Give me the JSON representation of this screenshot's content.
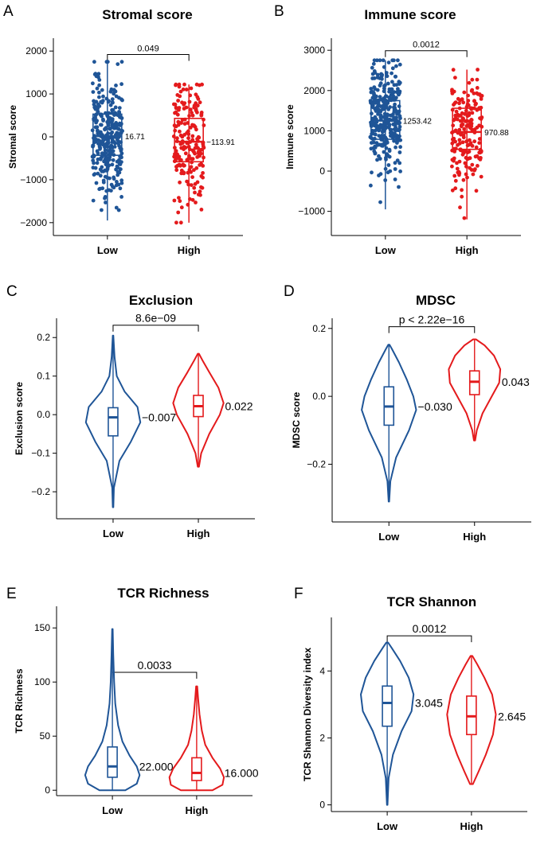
{
  "colors": {
    "low": "#1f5597",
    "high": "#e41a1c",
    "axis": "#000000"
  },
  "chart_data": [
    {
      "letter": "A",
      "type": "box",
      "title": "Stromal score",
      "ylabel": "Stromal score",
      "categories": [
        "Low",
        "High"
      ],
      "ylim": [
        -2300,
        2300
      ],
      "yticks": [
        -2000,
        -1000,
        0,
        1000,
        2000
      ],
      "tick_labels": [
        "−2000",
        "−1000",
        "0",
        "1000",
        "2000"
      ],
      "p_value": "0.049",
      "p_y": 1920,
      "groups": [
        {
          "name": "Low",
          "min": -1950,
          "q1": -430,
          "median": 16.71,
          "q3": 530,
          "max": 1750,
          "label": "16.71",
          "n": 320
        },
        {
          "name": "High",
          "min": -2000,
          "q1": -580,
          "median": -113.91,
          "q3": 430,
          "max": 1220,
          "label": "−113.91",
          "n": 190
        }
      ]
    },
    {
      "letter": "B",
      "type": "box",
      "title": "Immune score",
      "ylabel": "Immune score",
      "categories": [
        "Low",
        "High"
      ],
      "ylim": [
        -1600,
        3300
      ],
      "yticks": [
        -1000,
        0,
        1000,
        2000,
        3000
      ],
      "tick_labels": [
        "−1000",
        "0",
        "1000",
        "2000",
        "3000"
      ],
      "p_value": "0.0012",
      "p_y": 2990,
      "groups": [
        {
          "name": "Low",
          "min": -950,
          "q1": 790,
          "median": 1253.42,
          "q3": 1750,
          "max": 2750,
          "label": "1253.42",
          "n": 320
        },
        {
          "name": "High",
          "min": -1200,
          "q1": 540,
          "median": 970.88,
          "q3": 1560,
          "max": 2520,
          "label": "970.88",
          "n": 190
        }
      ]
    },
    {
      "letter": "C",
      "type": "violin",
      "title": "Exclusion",
      "ylabel": "Exclusion score",
      "categories": [
        "Low",
        "High"
      ],
      "ylim": [
        -0.27,
        0.25
      ],
      "yticks": [
        -0.2,
        -0.1,
        0.0,
        0.1,
        0.2
      ],
      "tick_labels": [
        "−0.2",
        "−0.1",
        "0.0",
        "0.1",
        "0.2"
      ],
      "p_value": "8.6e−09",
      "p_y": 0.232,
      "groups": [
        {
          "name": "Low",
          "min": -0.24,
          "q1": -0.055,
          "median": -0.007,
          "q3": 0.018,
          "max": 0.205,
          "label": "−0.007",
          "violin": {
            "lo": -0.24,
            "hi": 0.205,
            "pts": [
              [
                -0.24,
                0.01
              ],
              [
                -0.19,
                0.03
              ],
              [
                -0.12,
                0.22
              ],
              [
                -0.07,
                0.62
              ],
              [
                -0.02,
                0.95
              ],
              [
                0.02,
                0.85
              ],
              [
                0.06,
                0.4
              ],
              [
                0.1,
                0.13
              ],
              [
                0.15,
                0.05
              ],
              [
                0.205,
                0.01
              ]
            ]
          }
        },
        {
          "name": "High",
          "min": -0.135,
          "q1": -0.005,
          "median": 0.022,
          "q3": 0.05,
          "max": 0.158,
          "label": "0.022",
          "violin": {
            "lo": -0.135,
            "hi": 0.158,
            "pts": [
              [
                -0.135,
                0.02
              ],
              [
                -0.1,
                0.1
              ],
              [
                -0.05,
                0.38
              ],
              [
                0.0,
                0.75
              ],
              [
                0.03,
                0.88
              ],
              [
                0.07,
                0.7
              ],
              [
                0.11,
                0.38
              ],
              [
                0.14,
                0.15
              ],
              [
                0.158,
                0.02
              ]
            ]
          }
        }
      ]
    },
    {
      "letter": "D",
      "type": "violin",
      "title": "MDSC",
      "ylabel": "MDSC score",
      "categories": [
        "Low",
        "High"
      ],
      "ylim": [
        -0.37,
        0.23
      ],
      "yticks": [
        -0.2,
        0.0,
        0.2
      ],
      "tick_labels": [
        "−0.2",
        "0.0",
        "0.2"
      ],
      "p_value": "p < 2.22e−16",
      "p_y": 0.205,
      "groups": [
        {
          "name": "Low",
          "min": -0.31,
          "q1": -0.085,
          "median": -0.03,
          "q3": 0.028,
          "max": 0.152,
          "label": "−0.030",
          "violin": {
            "lo": -0.31,
            "hi": 0.152,
            "pts": [
              [
                -0.31,
                0.01
              ],
              [
                -0.25,
                0.05
              ],
              [
                -0.18,
                0.25
              ],
              [
                -0.1,
                0.7
              ],
              [
                -0.04,
                0.95
              ],
              [
                0.0,
                0.85
              ],
              [
                0.05,
                0.62
              ],
              [
                0.1,
                0.35
              ],
              [
                0.14,
                0.1
              ],
              [
                0.152,
                0.02
              ]
            ]
          }
        },
        {
          "name": "High",
          "min": -0.13,
          "q1": 0.005,
          "median": 0.043,
          "q3": 0.075,
          "max": 0.168,
          "label": "0.043",
          "violin": {
            "lo": -0.13,
            "hi": 0.168,
            "pts": [
              [
                -0.13,
                0.02
              ],
              [
                -0.1,
                0.08
              ],
              [
                -0.05,
                0.28
              ],
              [
                0.0,
                0.6
              ],
              [
                0.04,
                0.86
              ],
              [
                0.08,
                0.9
              ],
              [
                0.12,
                0.68
              ],
              [
                0.15,
                0.35
              ],
              [
                0.168,
                0.05
              ]
            ]
          }
        }
      ]
    },
    {
      "letter": "E",
      "type": "violin",
      "title": "TCR Richness",
      "ylabel": "TCR Richness",
      "categories": [
        "Low",
        "High"
      ],
      "ylim": [
        -5,
        170
      ],
      "yticks": [
        0,
        50,
        100,
        150
      ],
      "tick_labels": [
        "0",
        "50",
        "100",
        "150"
      ],
      "p_value": "0.0033",
      "p_y": 109,
      "groups": [
        {
          "name": "Low",
          "min": 0,
          "q1": 12,
          "median": 22.0,
          "q3": 40,
          "max": 149,
          "label": "22.000",
          "violin": {
            "lo": 0,
            "hi": 149,
            "pts": [
              [
                0,
                0.45
              ],
              [
                6,
                0.85
              ],
              [
                14,
                0.95
              ],
              [
                22,
                0.85
              ],
              [
                32,
                0.6
              ],
              [
                45,
                0.35
              ],
              [
                60,
                0.2
              ],
              [
                80,
                0.1
              ],
              [
                100,
                0.06
              ],
              [
                125,
                0.03
              ],
              [
                149,
                0.01
              ]
            ]
          }
        },
        {
          "name": "High",
          "min": 0,
          "q1": 9,
          "median": 16.0,
          "q3": 30,
          "max": 96,
          "label": "16.000",
          "violin": {
            "lo": 0,
            "hi": 96,
            "pts": [
              [
                0,
                0.55
              ],
              [
                5,
                0.9
              ],
              [
                12,
                0.95
              ],
              [
                20,
                0.82
              ],
              [
                30,
                0.55
              ],
              [
                42,
                0.3
              ],
              [
                55,
                0.18
              ],
              [
                70,
                0.1
              ],
              [
                85,
                0.05
              ],
              [
                96,
                0.02
              ]
            ]
          }
        }
      ]
    },
    {
      "letter": "F",
      "type": "violin",
      "title": "TCR Shannon",
      "ylabel": "TCR Shannon Diversity index",
      "categories": [
        "Low",
        "High"
      ],
      "ylim": [
        -0.2,
        5.6
      ],
      "yticks": [
        0,
        2,
        4
      ],
      "tick_labels": [
        "0",
        "2",
        "4"
      ],
      "p_value": "0.0012",
      "p_y": 5.05,
      "groups": [
        {
          "name": "Low",
          "min": 0.0,
          "q1": 2.35,
          "median": 3.045,
          "q3": 3.55,
          "max": 4.85,
          "label": "3.045",
          "violin": {
            "lo": 0.0,
            "hi": 4.85,
            "pts": [
              [
                0.0,
                0.01
              ],
              [
                0.8,
                0.05
              ],
              [
                1.5,
                0.2
              ],
              [
                2.2,
                0.5
              ],
              [
                2.8,
                0.85
              ],
              [
                3.3,
                0.92
              ],
              [
                3.8,
                0.75
              ],
              [
                4.3,
                0.45
              ],
              [
                4.7,
                0.15
              ],
              [
                4.85,
                0.03
              ]
            ]
          }
        },
        {
          "name": "High",
          "min": 0.62,
          "q1": 2.1,
          "median": 2.645,
          "q3": 3.25,
          "max": 4.45,
          "label": "2.645",
          "violin": {
            "lo": 0.62,
            "hi": 4.45,
            "pts": [
              [
                0.62,
                0.05
              ],
              [
                1.0,
                0.25
              ],
              [
                1.5,
                0.5
              ],
              [
                2.1,
                0.75
              ],
              [
                2.7,
                0.85
              ],
              [
                3.3,
                0.72
              ],
              [
                3.8,
                0.45
              ],
              [
                4.2,
                0.2
              ],
              [
                4.45,
                0.03
              ]
            ]
          }
        }
      ]
    }
  ]
}
